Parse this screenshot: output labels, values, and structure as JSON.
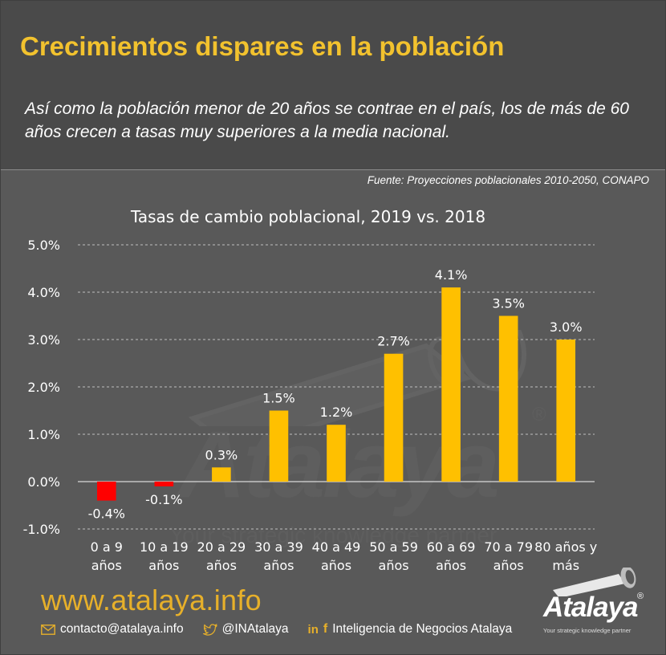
{
  "header": {
    "title": "Crecimientos dispares en la población",
    "subtitle": "Así como la población menor de 20 años se contrae en el país, los de más de 60 años crecen a tasas muy superiores a la media nacional."
  },
  "source": "Fuente: Proyecciones poblacionales 2010-2050, CONAPO",
  "chart_data": {
    "type": "bar",
    "title": "Tasas de cambio poblacional, 2019 vs. 2018",
    "categories": [
      [
        "0 a 9",
        "años"
      ],
      [
        "10 a 19",
        "años"
      ],
      [
        "20 a 29",
        "años"
      ],
      [
        "30 a 39",
        "años"
      ],
      [
        "40 a 49",
        "años"
      ],
      [
        "50 a 59",
        "años"
      ],
      [
        "60 a 69",
        "años"
      ],
      [
        "70 a 79",
        "años"
      ],
      [
        "80 años y",
        "más"
      ]
    ],
    "values": [
      -0.4,
      -0.1,
      0.3,
      1.5,
      1.2,
      2.7,
      4.1,
      3.5,
      3.0
    ],
    "value_labels": [
      "-0.4%",
      "-0.1%",
      "0.3%",
      "1.5%",
      "1.2%",
      "2.7%",
      "4.1%",
      "3.5%",
      "3.0%"
    ],
    "yticks": [
      -1,
      0,
      1,
      2,
      3,
      4,
      5
    ],
    "ytick_labels": [
      "-1.0%",
      "0.0%",
      "1.0%",
      "2.0%",
      "3.0%",
      "4.0%",
      "5.0%"
    ],
    "ylim": [
      -1,
      5
    ],
    "grid": true,
    "colors": {
      "positive": "#ffc000",
      "negative": "#ff0000",
      "text": "#ffffff",
      "grid": "#bfbfbf"
    }
  },
  "footer": {
    "url": "www.atalaya.info",
    "email": "contacto@atalaya.info",
    "twitter": "@INAtalaya",
    "social_names": "Inteligencia de Negocios Atalaya",
    "icons": [
      "envelope-icon",
      "twitter-icon",
      "linkedin-icon",
      "facebook-icon"
    ]
  },
  "logo": {
    "word": "Atalaya",
    "tagline": "Your strategic knowledge partner",
    "reg": "®"
  },
  "watermark": {
    "word": "Atalaya",
    "tagline": "Your strategic knowledge partner",
    "reg": "®"
  }
}
